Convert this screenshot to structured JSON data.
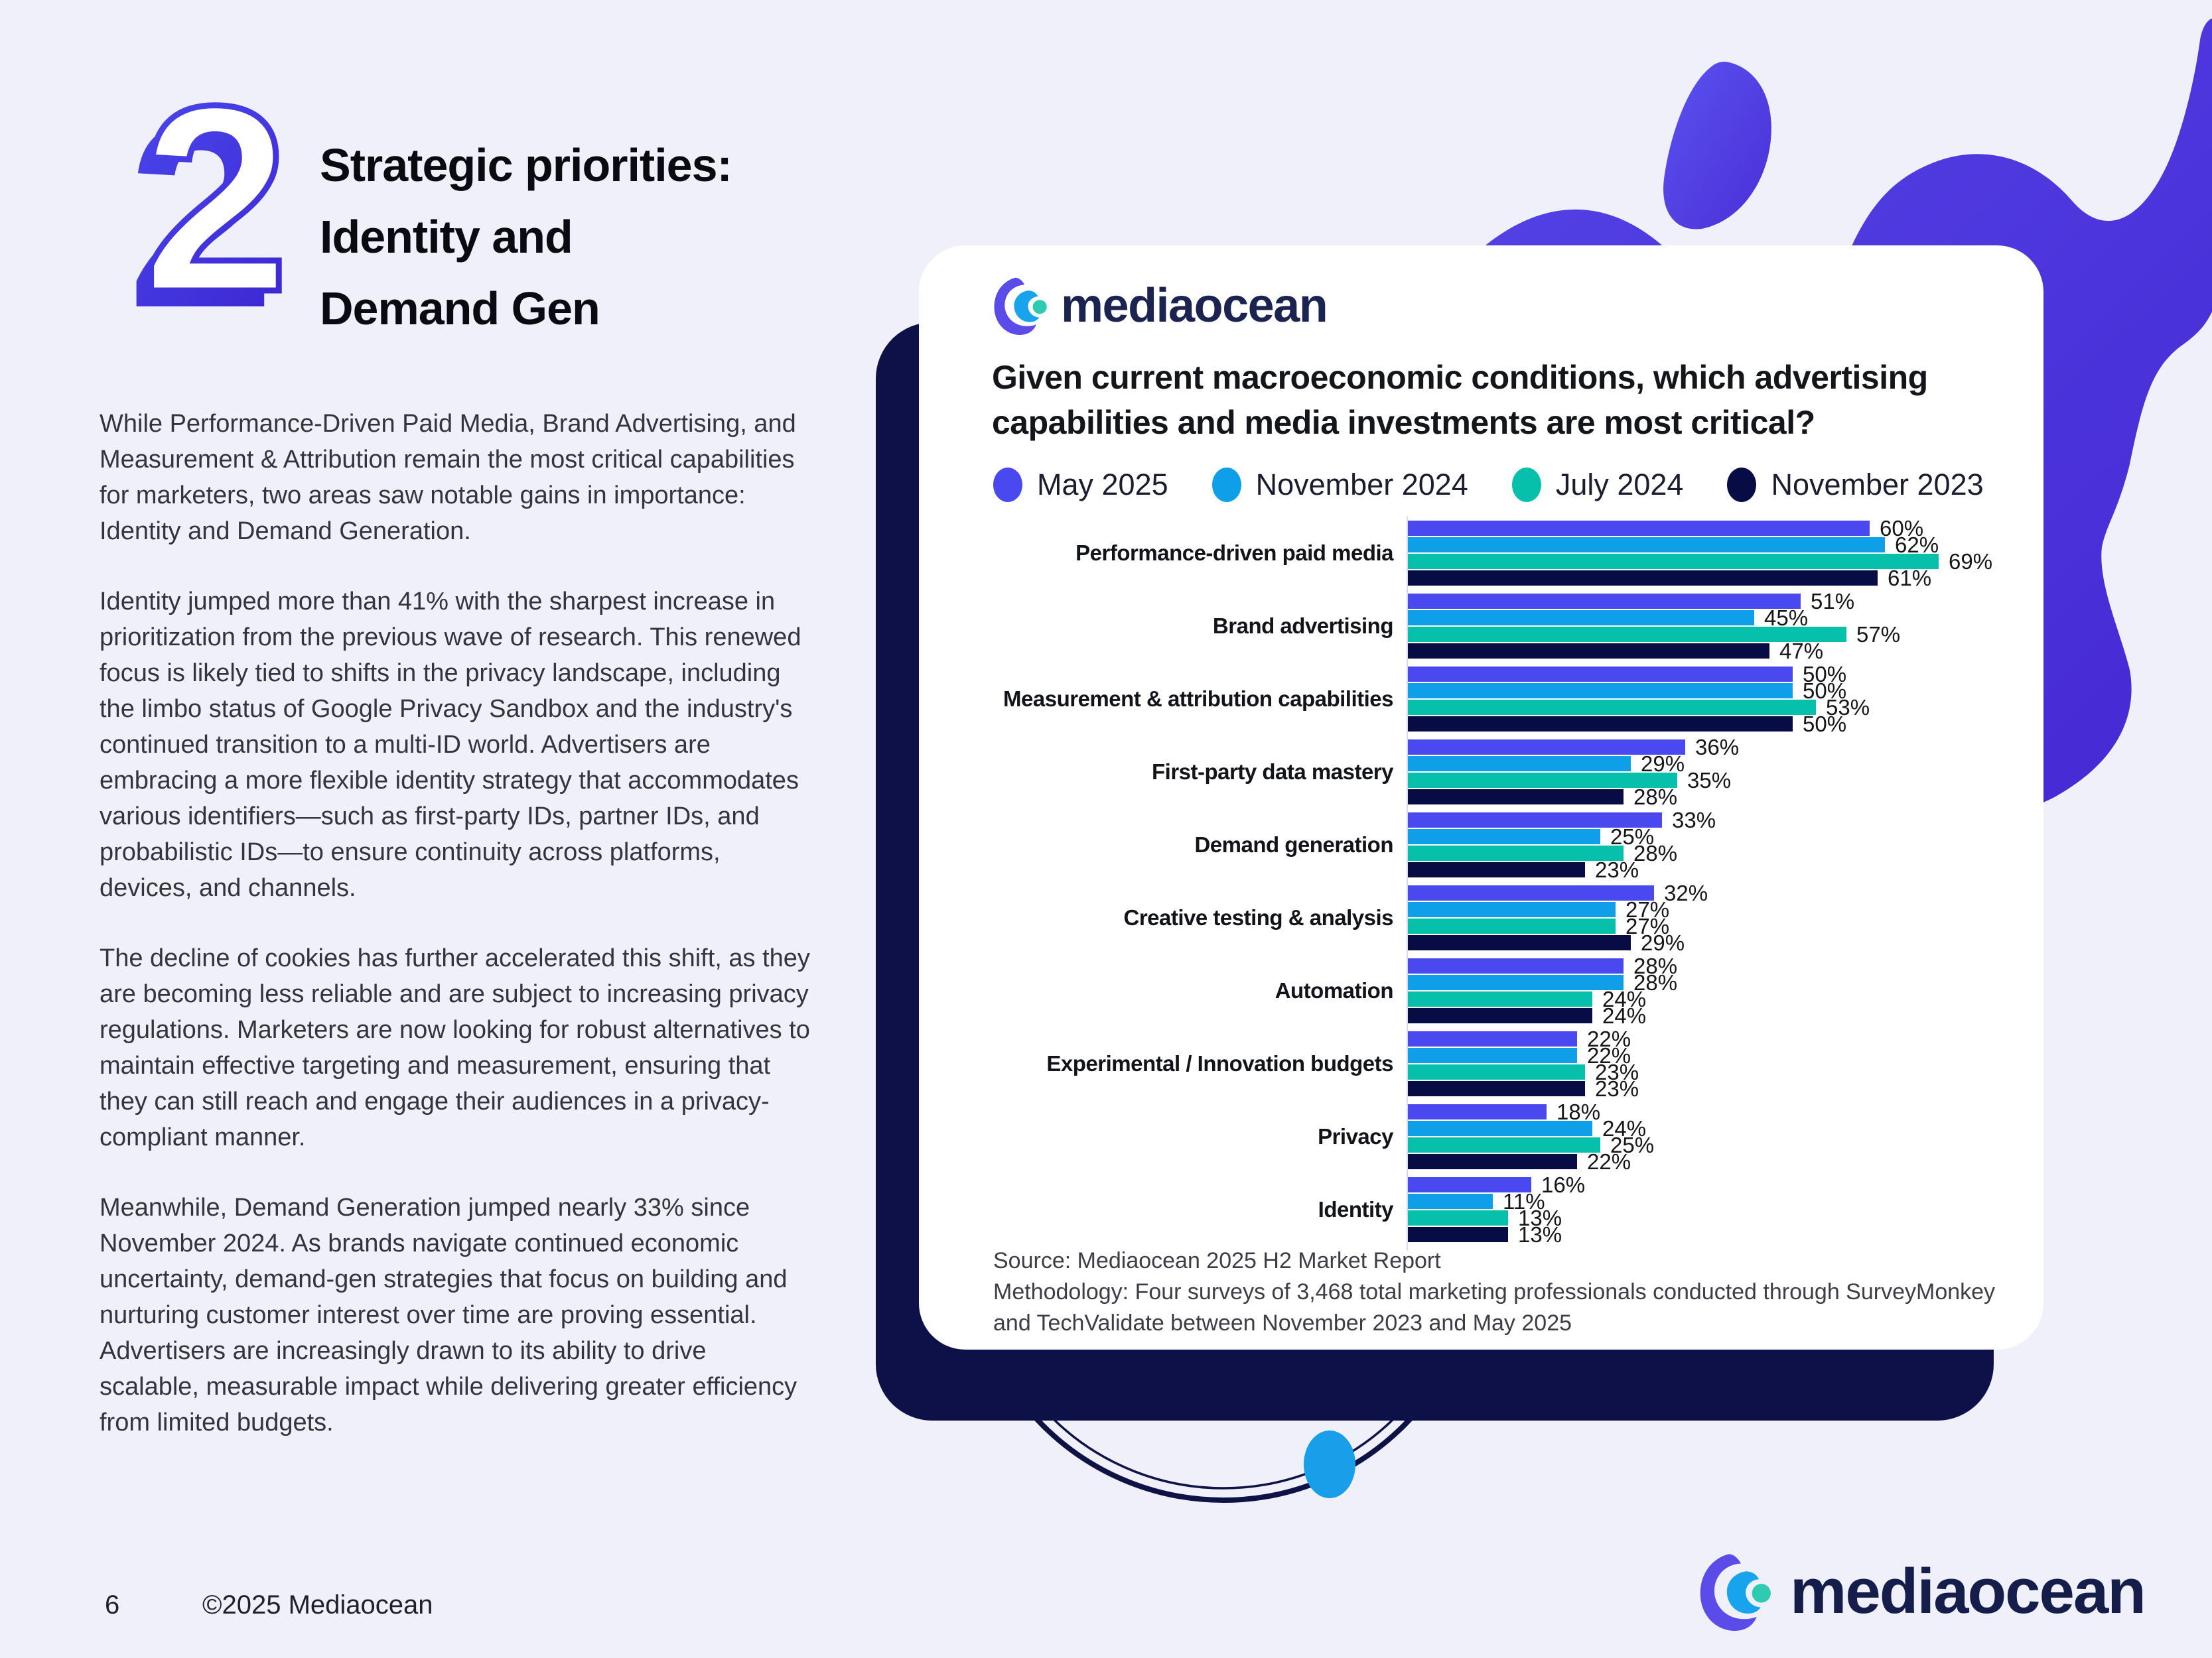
{
  "page": {
    "number": "6",
    "copyright": "©2025 Mediaocean"
  },
  "section": {
    "numeral": "2",
    "title_lines": [
      "Strategic priorities:",
      "Identity and",
      "Demand Gen"
    ],
    "paragraphs": [
      "While Performance-Driven Paid Media, Brand Advertising, and Measurement & Attribution remain the most critical capabilities for marketers, two areas saw notable gains in importance: Identity and Demand Generation.",
      "Identity jumped more than 41% with the sharpest increase in prioritization from the previous wave of research. This renewed focus is likely tied to shifts in the privacy landscape, including the limbo status of Google Privacy Sandbox and the industry's continued transition to a multi-ID world. Advertisers are embracing a more flexible identity strategy that accommodates various identifiers—such as first-party IDs, partner IDs, and probabilistic IDs—to ensure continuity across platforms, devices, and channels.",
      "The decline of cookies has further accelerated this shift, as they are becoming less reliable and are subject to increasing privacy regulations. Marketers are now looking for robust alternatives to maintain effective targeting and measurement, ensuring that they can still reach and engage their audiences in a privacy-compliant manner.",
      "Meanwhile, Demand Generation jumped nearly 33% since November 2024. As brands navigate continued economic uncertainty, demand-gen strategies that focus on building and nurturing customer interest over time are proving essential. Advertisers are increasingly drawn to its ability to drive scalable, measurable impact while delivering greater efficiency from limited budgets."
    ]
  },
  "card": {
    "brand": "mediaocean",
    "question_lines": [
      "Given current macroeconomic conditions, which advertising",
      "capabilities and media investments are most critical?"
    ],
    "source_lines": [
      "Source: Mediaocean 2025 H2 Market Report",
      "Methodology: Four surveys of 3,468 total marketing professionals conducted through SurveyMonkey",
      "and TechValidate between November 2023 and May 2025"
    ]
  },
  "footer": {
    "brand": "mediaocean"
  },
  "colors": {
    "background": "#eff0fa",
    "blob_gradient": [
      "#5546e9",
      "#4528d2"
    ],
    "navy_card": "#0d1147",
    "accent_dot": "#199fe9",
    "brand_navy": "#1b2450"
  },
  "chart_data": {
    "type": "bar",
    "orientation": "horizontal",
    "unit": "%",
    "title": "Given current macroeconomic conditions, which advertising capabilities and media investments are most critical?",
    "legend_position": "top",
    "grid": false,
    "xlim": [
      0,
      74
    ],
    "value_labels": true,
    "categories": [
      "Performance-driven paid media",
      "Brand advertising",
      "Measurement & attribution capabilities",
      "First-party data mastery",
      "Demand generation",
      "Creative testing & analysis",
      "Automation",
      "Experimental / Innovation budgets",
      "Privacy",
      "Identity"
    ],
    "series": [
      {
        "name": "May 2025",
        "color": "#4a48ef",
        "values": [
          60,
          51,
          50,
          36,
          33,
          32,
          28,
          22,
          18,
          16
        ]
      },
      {
        "name": "November 2024",
        "color": "#0f9fe9",
        "values": [
          62,
          45,
          50,
          29,
          25,
          27,
          28,
          22,
          24,
          11
        ]
      },
      {
        "name": "July 2024",
        "color": "#06c0ab",
        "values": [
          69,
          57,
          53,
          35,
          28,
          27,
          24,
          23,
          25,
          13
        ]
      },
      {
        "name": "November 2023",
        "color": "#070d44",
        "values": [
          61,
          47,
          50,
          28,
          23,
          29,
          24,
          23,
          22,
          13
        ]
      }
    ]
  }
}
